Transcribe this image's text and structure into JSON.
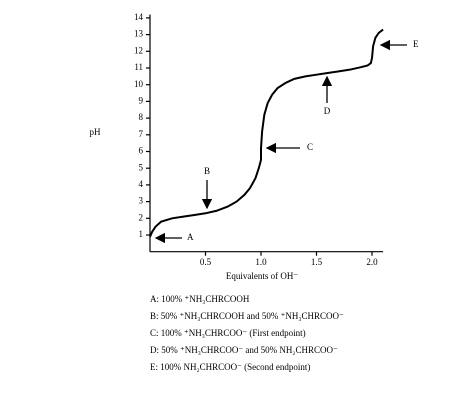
{
  "chart_data": {
    "type": "line",
    "x": [
      0,
      0.02,
      0.05,
      0.1,
      0.2,
      0.3,
      0.4,
      0.5,
      0.6,
      0.7,
      0.78,
      0.85,
      0.9,
      0.95,
      0.98,
      1.0,
      1.0,
      1.01,
      1.03,
      1.06,
      1.1,
      1.15,
      1.22,
      1.3,
      1.4,
      1.5,
      1.6,
      1.7,
      1.8,
      1.9,
      1.96,
      1.99,
      2.0,
      2.01,
      2.03,
      2.06,
      2.1
    ],
    "values": [
      0.9,
      1.2,
      1.5,
      1.8,
      2.0,
      2.1,
      2.2,
      2.3,
      2.45,
      2.7,
      3.0,
      3.4,
      3.8,
      4.4,
      5.0,
      5.5,
      6.2,
      7.2,
      8.2,
      8.9,
      9.4,
      9.8,
      10.1,
      10.35,
      10.5,
      10.6,
      10.7,
      10.8,
      10.9,
      11.05,
      11.15,
      11.3,
      11.6,
      12.3,
      12.8,
      13.1,
      13.3
    ],
    "color": "#000000",
    "xlim": [
      0,
      2.1
    ],
    "ylim": [
      0,
      14.2
    ],
    "xticks": [
      0.5,
      {
        "value": 1,
        "label": "1.0"
      },
      1.5,
      {
        "value": 2,
        "label": "2.0"
      }
    ],
    "yticks": [
      1,
      2,
      3,
      4,
      5,
      6,
      7,
      8,
      9,
      10,
      11,
      12,
      13,
      14
    ],
    "ylabel": "pH",
    "xlabel": "Equivalents of OH⁻",
    "annotations": [
      "A",
      "B",
      "C",
      "D",
      "E"
    ],
    "notes": [
      "A: 100% ⁺NH₃CHRCOOH",
      "B: 50% ⁺NH₃CHRCOOH and 50% ⁺NH₃CHRCOO⁻",
      "C: 100% ⁺NH₃CHRCOO⁻  (First endpoint)",
      "D: 50% ⁺NH₃CHRCOO⁻ and 50% NH₂CHRCOO⁻",
      "E: 100% NH₂CHRCOO⁻  (Second endpoint)"
    ]
  }
}
